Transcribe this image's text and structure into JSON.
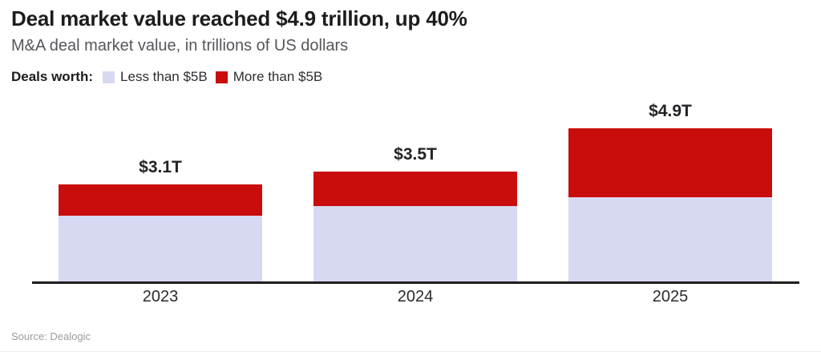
{
  "header": {
    "title": "Deal market value reached $4.9 trillion, up 40%",
    "subtitle": "M&A deal market value, in trillions of US dollars"
  },
  "legend": {
    "label": "Deals worth:",
    "items": [
      {
        "name": "Less than $5B",
        "color": "#d7d9f2"
      },
      {
        "name": "More than $5B",
        "color": "#c90d0d"
      }
    ]
  },
  "chart_data": {
    "type": "bar",
    "stacked": true,
    "categories": [
      "2023",
      "2024",
      "2025"
    ],
    "series": [
      {
        "name": "Less than $5B",
        "color": "#d7d9f2",
        "values": [
          2.1,
          2.4,
          2.7
        ]
      },
      {
        "name": "More than $5B",
        "color": "#c90d0d",
        "values": [
          1.0,
          1.1,
          2.2
        ]
      }
    ],
    "totals": [
      3.1,
      3.5,
      4.9
    ],
    "total_labels": [
      "$3.1T",
      "$3.5T",
      "$4.9T"
    ],
    "title": "Deal market value reached $4.9 trillion, up 40%",
    "xlabel": "",
    "ylabel": "M&A deal market value, in trillions of US dollars",
    "ylim": [
      0,
      5
    ],
    "grid": false,
    "legend_position": "top"
  },
  "footer": {
    "source": "Source: Dealogic"
  }
}
